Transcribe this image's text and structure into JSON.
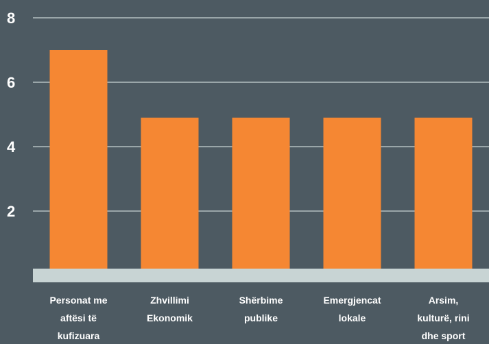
{
  "chart_data": {
    "type": "bar",
    "categories": [
      [
        "Personat me",
        "aftësi të",
        "kufizuara"
      ],
      [
        "Zhvillimi",
        "Ekonomik"
      ],
      [
        "Shërbime",
        "publike"
      ],
      [
        "Emergjencat",
        "lokale"
      ],
      [
        "Arsim,",
        "kulturë, rini",
        "dhe sport"
      ]
    ],
    "values": [
      7,
      4.9,
      4.9,
      4.9,
      4.9
    ],
    "yticks": [
      "2",
      "4",
      "6",
      "8"
    ],
    "ylim": [
      0,
      8
    ],
    "grid": true,
    "colors": {
      "background": "#4d5a62",
      "bar": "#f58733",
      "baseline": "#c8d4d4",
      "gridline": "#c8d4d4",
      "text": "#ffffff"
    }
  }
}
